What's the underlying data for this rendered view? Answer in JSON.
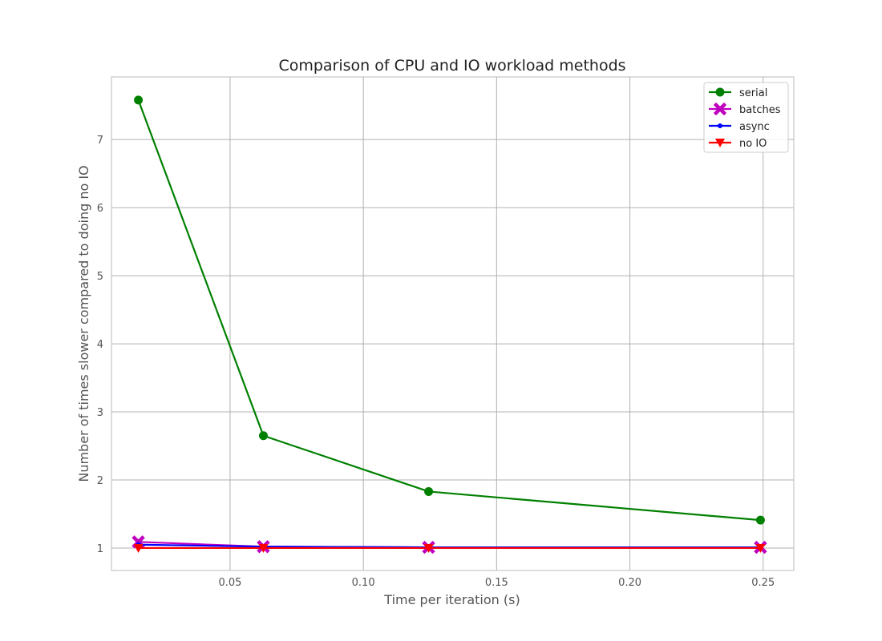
{
  "chart_data": {
    "type": "line",
    "title": "Comparison of CPU and IO workload methods",
    "xlabel": "Time per iteration (s)",
    "ylabel": "Number of times slower compared to doing no IO",
    "xlim": [
      0.0055,
      0.2615
    ],
    "ylim": [
      0.67,
      7.92
    ],
    "x_ticks": [
      0.05,
      0.1,
      0.15,
      0.2,
      0.25
    ],
    "x_tick_labels": [
      "0.05",
      "0.10",
      "0.15",
      "0.20",
      "0.25"
    ],
    "y_ticks": [
      1,
      2,
      3,
      4,
      5,
      6,
      7
    ],
    "y_tick_labels": [
      "1",
      "2",
      "3",
      "4",
      "5",
      "6",
      "7"
    ],
    "grid": true,
    "legend_position": "top-right",
    "x": [
      0.0156,
      0.0625,
      0.1245,
      0.249
    ],
    "series": [
      {
        "name": "serial",
        "color": "#008000",
        "marker": "circle",
        "values": [
          7.58,
          2.65,
          1.83,
          1.41
        ]
      },
      {
        "name": "batches",
        "color": "#bf00bf",
        "marker": "x-filled",
        "values": [
          1.09,
          1.02,
          1.01,
          1.01
        ]
      },
      {
        "name": "async",
        "color": "#0000ff",
        "marker": "point",
        "values": [
          1.05,
          1.02,
          1.01,
          1.01
        ]
      },
      {
        "name": "no IO",
        "color": "#ff0000",
        "marker": "triangle-down",
        "values": [
          1.0,
          1.0,
          1.0,
          1.0
        ]
      }
    ]
  }
}
